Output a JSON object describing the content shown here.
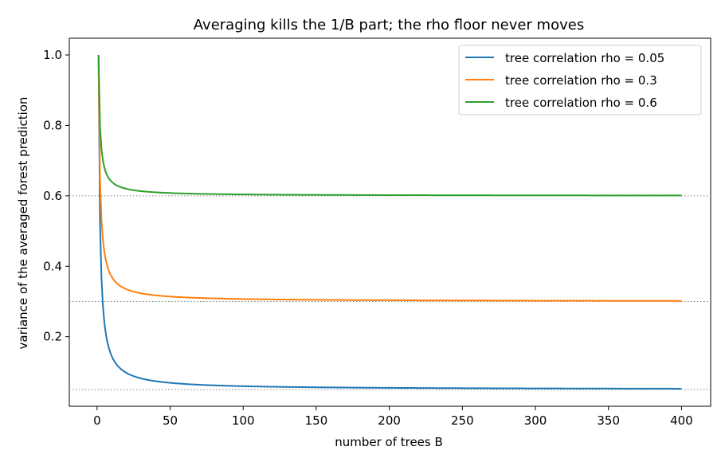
{
  "chart_data": {
    "type": "line",
    "title": "Averaging kills the 1/B part; the rho floor never moves",
    "xlabel": "number of trees B",
    "ylabel": "variance of the averaged forest prediction",
    "xlim": [
      -19,
      419.95
    ],
    "ylim": [
      0.0025,
      1.0475
    ],
    "xticks": [
      0,
      50,
      100,
      150,
      200,
      250,
      300,
      350,
      400
    ],
    "yticks": [
      0.2,
      0.4,
      0.6,
      0.8,
      1.0
    ],
    "xtick_labels": [
      "0",
      "50",
      "100",
      "150",
      "200",
      "250",
      "300",
      "350",
      "400"
    ],
    "ytick_labels": [
      "0.2",
      "0.4",
      "0.6",
      "0.8",
      "1.0"
    ],
    "grid": false,
    "legend_position": "top-right",
    "formula": "variance(B) = rho + (1 - rho) / B",
    "b_range": [
      1,
      400
    ],
    "series": [
      {
        "name": "tree correlation rho = 0.05",
        "rho": 0.05,
        "color": "#1f77b4",
        "start_value": 1.0,
        "end_value": 0.0524
      },
      {
        "name": "tree correlation rho = 0.3",
        "rho": 0.3,
        "color": "#ff7f0e",
        "start_value": 1.0,
        "end_value": 0.3018
      },
      {
        "name": "tree correlation rho = 0.6",
        "rho": 0.6,
        "color": "#2ca02c",
        "start_value": 1.0,
        "end_value": 0.601
      }
    ],
    "reference_lines": [
      {
        "y": 0.05,
        "style": "dotted",
        "color": "#808080"
      },
      {
        "y": 0.3,
        "style": "dotted",
        "color": "#808080"
      },
      {
        "y": 0.6,
        "style": "dotted",
        "color": "#808080"
      }
    ]
  }
}
